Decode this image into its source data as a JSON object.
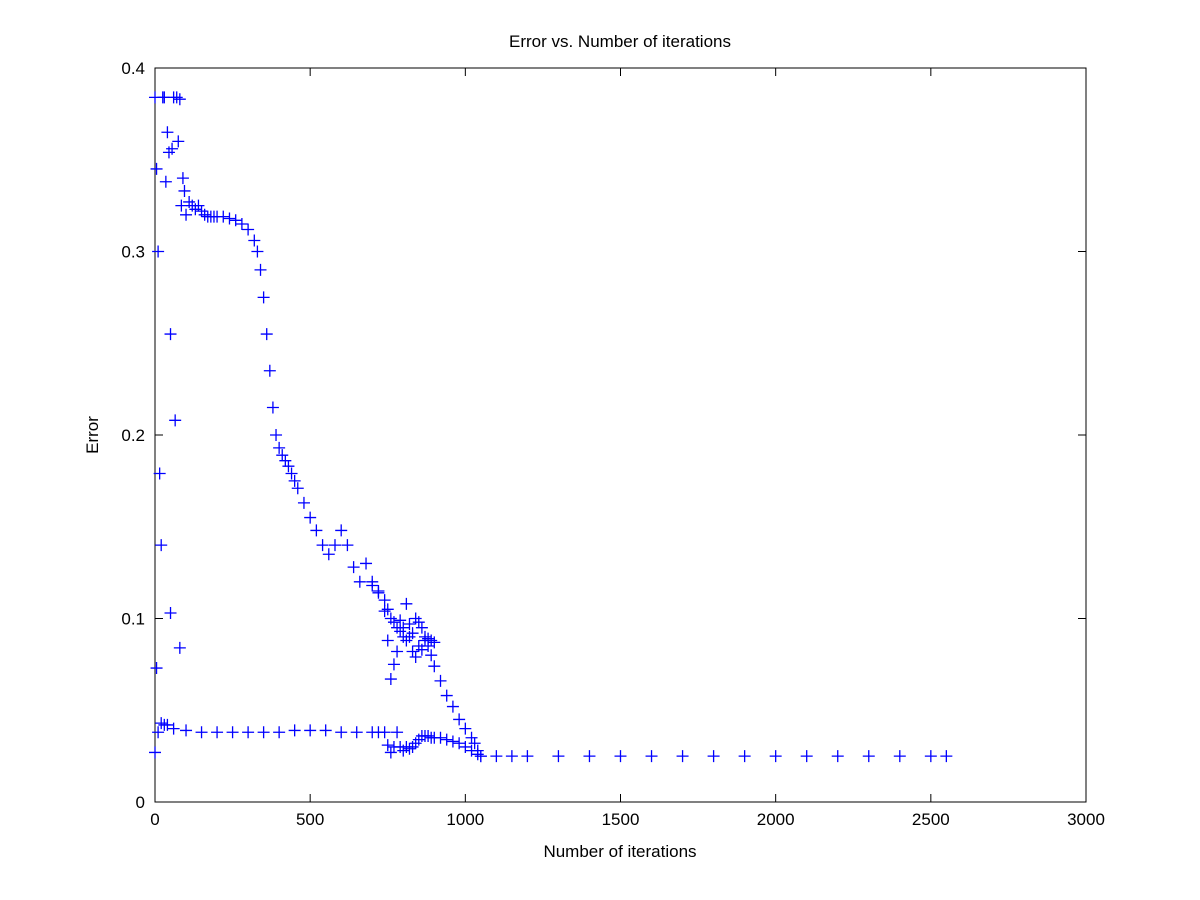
{
  "chart_data": {
    "type": "scatter",
    "title": "Error vs. Number of iterations",
    "xlabel": "Number of iterations",
    "ylabel": "Error",
    "xlim": [
      0,
      3000
    ],
    "ylim": [
      0,
      0.4
    ],
    "xticks": [
      0,
      500,
      1000,
      1500,
      2000,
      2500,
      3000
    ],
    "yticks": [
      0,
      0.1,
      0.2,
      0.3,
      0.4
    ],
    "xtick_labels": [
      "0",
      "500",
      "1000",
      "1500",
      "2000",
      "2500",
      "3000"
    ],
    "ytick_labels": [
      "0",
      "0.1",
      "0.2",
      "0.3",
      "0.4"
    ],
    "grid": false,
    "marker": "plus",
    "color": "#0000ff",
    "series": [
      {
        "values_x": [
          0,
          5,
          10,
          15,
          20,
          25,
          30,
          35,
          40,
          45,
          50,
          55,
          60,
          65,
          70,
          75,
          80,
          85,
          90,
          95,
          100,
          110,
          120,
          130,
          140,
          150,
          160,
          170,
          180,
          190,
          200,
          220,
          240,
          260,
          280,
          300,
          320,
          330,
          340,
          350,
          360,
          370,
          380,
          390,
          400,
          410,
          420,
          430,
          440,
          450,
          460,
          480,
          500,
          520,
          540,
          560,
          580,
          600,
          620,
          640,
          660,
          680,
          700,
          720,
          740,
          750,
          760,
          770,
          780,
          790,
          800,
          810,
          820,
          830,
          840,
          850,
          860,
          870,
          880,
          890,
          900,
          920,
          940,
          960,
          980,
          1000,
          1020,
          1030,
          1040,
          1050
        ],
        "values_y": [
          0.384,
          0.345,
          0.3,
          0.179,
          0.14,
          0.384,
          0.384,
          0.338,
          0.365,
          0.354,
          0.255,
          0.356,
          0.384,
          0.208,
          0.384,
          0.36,
          0.383,
          0.325,
          0.34,
          0.333,
          0.32,
          0.327,
          0.325,
          0.323,
          0.325,
          0.322,
          0.32,
          0.319,
          0.319,
          0.319,
          0.319,
          0.319,
          0.318,
          0.317,
          0.315,
          0.312,
          0.306,
          0.3,
          0.29,
          0.275,
          0.255,
          0.235,
          0.215,
          0.2,
          0.193,
          0.189,
          0.186,
          0.183,
          0.179,
          0.175,
          0.171,
          0.163,
          0.155,
          0.148,
          0.14,
          0.135,
          0.14,
          0.148,
          0.14,
          0.128,
          0.12,
          0.13,
          0.118,
          0.115,
          0.11,
          0.105,
          0.1,
          0.098,
          0.095,
          0.093,
          0.09,
          0.088,
          0.09,
          0.092,
          0.1,
          0.098,
          0.095,
          0.09,
          0.085,
          0.08,
          0.074,
          0.066,
          0.058,
          0.052,
          0.045,
          0.04,
          0.035,
          0.032,
          0.028,
          0.025
        ]
      },
      {
        "values_x": [
          0,
          5,
          10,
          20,
          30,
          40,
          50,
          60,
          80,
          100,
          150,
          200,
          250,
          300,
          350,
          400,
          450,
          500,
          550,
          600,
          650,
          700,
          720,
          740,
          750,
          760,
          770,
          780,
          790,
          800,
          810,
          820,
          830,
          840,
          850,
          860,
          870,
          880,
          890,
          900,
          920,
          940,
          960,
          980,
          1000,
          1020,
          1040,
          1050,
          1100,
          1150,
          1200,
          1300,
          1400,
          1500,
          1600,
          1700,
          1800,
          1900,
          2000,
          2100,
          2200,
          2300,
          2400,
          2500,
          2550
        ],
        "values_y": [
          0.027,
          0.073,
          0.038,
          0.043,
          0.042,
          0.042,
          0.103,
          0.04,
          0.084,
          0.039,
          0.038,
          0.038,
          0.038,
          0.038,
          0.038,
          0.038,
          0.039,
          0.039,
          0.039,
          0.038,
          0.038,
          0.038,
          0.038,
          0.038,
          0.031,
          0.027,
          0.03,
          0.038,
          0.03,
          0.028,
          0.03,
          0.029,
          0.03,
          0.032,
          0.034,
          0.036,
          0.036,
          0.036,
          0.035,
          0.035,
          0.035,
          0.034,
          0.033,
          0.032,
          0.03,
          0.028,
          0.026,
          0.025,
          0.025,
          0.025,
          0.025,
          0.025,
          0.025,
          0.025,
          0.025,
          0.025,
          0.025,
          0.025,
          0.025,
          0.025,
          0.025,
          0.025,
          0.025,
          0.025,
          0.025
        ]
      },
      {
        "values_x": [
          700,
          720,
          740,
          750,
          760,
          770,
          780,
          790,
          800,
          810,
          820,
          830,
          840,
          850,
          860,
          870,
          880,
          890,
          900
        ],
        "values_y": [
          0.12,
          0.114,
          0.104,
          0.088,
          0.067,
          0.075,
          0.082,
          0.099,
          0.095,
          0.108,
          0.097,
          0.082,
          0.079,
          0.085,
          0.083,
          0.088,
          0.089,
          0.088,
          0.087
        ]
      }
    ]
  }
}
